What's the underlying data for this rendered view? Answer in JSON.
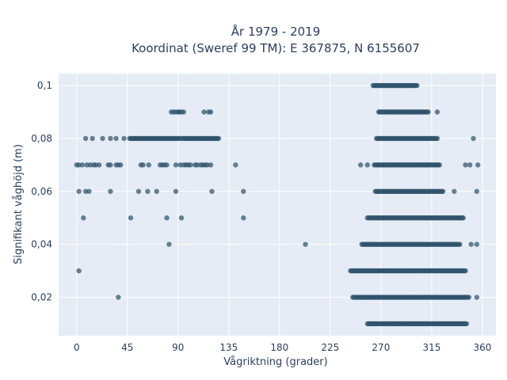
{
  "chart_data": {
    "type": "scatter",
    "title": "År 1979 - 2019",
    "subtitle": "Koordinat (Sweref 99 TM): E 367875, N 6155607",
    "xlabel": "Vågriktning (grader)",
    "ylabel": "Signifikant våghöjd (m)",
    "xlim": [
      -16,
      372
    ],
    "ylim": [
      0.0055,
      0.1045
    ],
    "x_ticks": [
      0,
      45,
      90,
      135,
      180,
      225,
      270,
      315,
      360
    ],
    "x_tick_labels": [
      "0",
      "45",
      "90",
      "135",
      "180",
      "225",
      "270",
      "315",
      "360"
    ],
    "y_ticks": [
      0.02,
      0.04,
      0.06,
      0.08,
      0.1
    ],
    "y_tick_labels": [
      "0,02",
      "0,04",
      "0,06",
      "0,08",
      "0,1"
    ],
    "grid": true,
    "legend": "none",
    "colors": {
      "plot_bg": "#e5ecf6",
      "grid": "#ffffff",
      "marker": "#2f536b",
      "text": "#2a3f5f"
    },
    "series": [
      {
        "points": [
          {
            "y": 0.01,
            "x_ranges": [
              [
                258,
                346
              ]
            ]
          },
          {
            "y": 0.02,
            "x": [
              37,
              355
            ],
            "x_ranges": [
              [
                245,
                348
              ]
            ]
          },
          {
            "y": 0.03,
            "x": [
              2
            ],
            "x_ranges": [
              [
                243,
                345
              ]
            ]
          },
          {
            "y": 0.04,
            "x": [
              82,
              203,
              350,
              355
            ],
            "x_ranges": [
              [
                253,
                340
              ]
            ]
          },
          {
            "y": 0.05,
            "x": [
              6,
              48,
              80,
              93,
              148
            ],
            "x_ranges": [
              [
                258,
                343
              ]
            ]
          },
          {
            "y": 0.06,
            "x": [
              2,
              8,
              11,
              30,
              55,
              63,
              71,
              88,
              120,
              148,
              335,
              355
            ],
            "x_ranges": [
              [
                265,
                325
              ]
            ]
          },
          {
            "y": 0.07,
            "x": [
              0,
              2,
              5,
              9,
              12,
              15,
              17,
              20,
              28,
              30,
              35,
              37,
              39,
              57,
              59,
              64,
              74,
              76,
              78,
              80,
              88,
              92,
              95,
              97,
              99,
              101,
              105,
              107,
              110,
              112,
              114,
              116,
              119,
              141,
              252,
              258,
              345,
              349,
              356
            ],
            "x_ranges": [
              [
                264,
                322
              ]
            ]
          },
          {
            "y": 0.08,
            "x": [
              8,
              14,
              23,
              30,
              35,
              42,
              352
            ],
            "x_ranges": [
              [
                47,
                92
              ],
              [
                94,
                126
              ],
              [
                266,
                320
              ]
            ]
          },
          {
            "y": 0.09,
            "x": [
              84,
              86,
              88,
              90,
              91,
              93,
              95,
              113,
              117,
              119,
              320
            ],
            "x_ranges": [
              [
                268,
                312
              ]
            ]
          },
          {
            "y": 0.1,
            "x_ranges": [
              [
                263,
                302
              ]
            ]
          }
        ]
      }
    ]
  }
}
